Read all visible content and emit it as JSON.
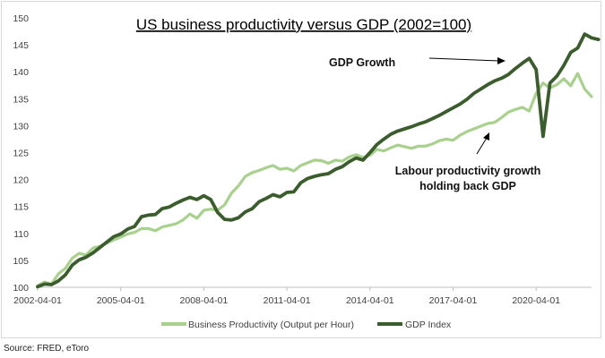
{
  "chart_data": {
    "type": "line",
    "title": "US business productivity versus GDP (2002=100)",
    "xlabel": "",
    "ylabel": "",
    "ylim": [
      100,
      150
    ],
    "yticks": [
      "100",
      "105",
      "110",
      "115",
      "120",
      "125",
      "130",
      "135",
      "140",
      "145",
      "150"
    ],
    "xticks": [
      "2002-04-01",
      "2005-04-01",
      "2008-04-01",
      "2011-04-01",
      "2014-04-01",
      "2017-04-01",
      "2020-04-01"
    ],
    "x_start": "2002-04-01",
    "x_step": "quarter",
    "grid": false,
    "legend_position": "bottom",
    "series": [
      {
        "name": "Business Productivity (Output per Hour)",
        "color": "#a9d18e",
        "values": [
          100.3,
          101.0,
          100.6,
          102.5,
          103.5,
          105.4,
          106.3,
          106.0,
          107.3,
          107.6,
          108.2,
          108.8,
          109.3,
          109.9,
          110.2,
          110.9,
          110.9,
          110.5,
          111.2,
          111.5,
          111.8,
          112.5,
          113.6,
          112.8,
          114.3,
          114.5,
          114.3,
          115.3,
          117.5,
          118.8,
          120.6,
          121.3,
          121.7,
          122.2,
          122.6,
          121.9,
          122.1,
          121.6,
          122.6,
          123.1,
          123.6,
          123.5,
          123.0,
          123.6,
          123.4,
          124.2,
          124.6,
          124.1,
          124.5,
          125.6,
          125.3,
          125.9,
          126.4,
          126.1,
          125.8,
          126.2,
          126.2,
          126.6,
          127.2,
          127.5,
          127.3,
          128.2,
          128.9,
          129.4,
          129.9,
          130.4,
          130.6,
          131.5,
          132.5,
          133.0,
          133.4,
          132.7,
          136.0,
          137.9,
          137.0,
          137.6,
          138.7,
          137.4,
          139.7,
          136.8,
          135.4
        ]
      },
      {
        "name": "GDP Index",
        "color": "#3b5d2e",
        "values": [
          100.1,
          100.6,
          100.5,
          101.2,
          102.3,
          104.1,
          105.1,
          105.6,
          106.4,
          107.4,
          108.4,
          109.4,
          109.9,
          110.8,
          111.3,
          113.1,
          113.4,
          113.5,
          114.6,
          114.9,
          115.6,
          116.2,
          116.7,
          116.3,
          117.0,
          116.3,
          113.9,
          112.6,
          112.5,
          112.9,
          114.0,
          114.6,
          115.9,
          116.5,
          117.2,
          116.8,
          117.6,
          117.7,
          119.4,
          120.2,
          120.6,
          120.9,
          121.1,
          121.9,
          122.4,
          123.3,
          124.0,
          123.6,
          125.0,
          126.5,
          127.5,
          128.4,
          129.0,
          129.4,
          129.8,
          130.3,
          130.7,
          131.3,
          131.9,
          132.6,
          133.3,
          134.0,
          134.9,
          136.0,
          136.8,
          137.6,
          138.3,
          138.8,
          139.5,
          140.6,
          141.6,
          142.5,
          140.4,
          128.0,
          137.9,
          139.2,
          141.2,
          143.6,
          144.4,
          147.0,
          146.3,
          146.0
        ]
      }
    ],
    "annotations": [
      {
        "text": "GDP Growth"
      },
      {
        "lines": [
          "Labour productivity growth",
          "holding back GDP"
        ]
      }
    ]
  },
  "source": "Source: FRED, eToro"
}
